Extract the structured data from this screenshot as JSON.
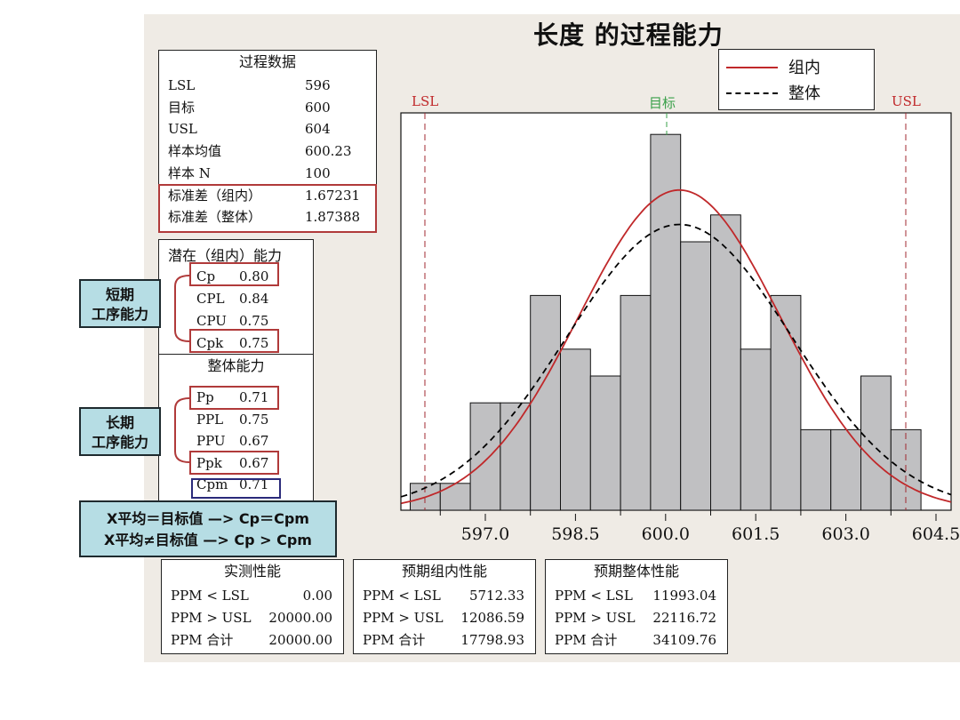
{
  "title": "长度 的过程能力",
  "legend": {
    "within": "组内",
    "overall": "整体",
    "within_color": "#c0282a",
    "overall_color": "#000000"
  },
  "spec_labels": {
    "lsl": "LSL",
    "target": "目标",
    "usl": "USL",
    "lsl_color": "#c0282a",
    "target_color": "#3aa04a",
    "usl_color": "#c0282a"
  },
  "process_data": {
    "title": "过程数据",
    "rows": [
      {
        "label": "LSL",
        "value": "596"
      },
      {
        "label": "目标",
        "value": "600"
      },
      {
        "label": "USL",
        "value": "604"
      },
      {
        "label": "样本均值",
        "value": "600.23"
      },
      {
        "label": "样本 N",
        "value": "100"
      },
      {
        "label": "标准差（组内）",
        "value": "1.67231"
      },
      {
        "label": "标准差（整体）",
        "value": "1.87388"
      }
    ]
  },
  "potential": {
    "title": "潜在（组内）能力",
    "rows": [
      {
        "label": "Cp",
        "value": "0.80"
      },
      {
        "label": "CPL",
        "value": "0.84"
      },
      {
        "label": "CPU",
        "value": "0.75"
      },
      {
        "label": "Cpk",
        "value": "0.75"
      }
    ]
  },
  "overall": {
    "title": "整体能力",
    "rows": [
      {
        "label": "Pp",
        "value": "0.71"
      },
      {
        "label": "PPL",
        "value": "0.75"
      },
      {
        "label": "PPU",
        "value": "0.67"
      },
      {
        "label": "Ppk",
        "value": "0.67"
      },
      {
        "label": "Cpm",
        "value": "0.71"
      }
    ]
  },
  "callouts": {
    "short_term": [
      "短期",
      "工序能力"
    ],
    "long_term": [
      "长期",
      "工序能力"
    ],
    "rule_1": "X平均＝目标值 —> Cp＝Cpm",
    "rule_2": "X平均≠目标值 —> Cp > Cpm"
  },
  "observed": {
    "title": "实测性能",
    "rows": [
      {
        "label": "PPM < LSL",
        "value": "0.00"
      },
      {
        "label": "PPM > USL",
        "value": "20000.00"
      },
      {
        "label": "PPM 合计",
        "value": "20000.00"
      }
    ]
  },
  "exp_within": {
    "title": "预期组内性能",
    "rows": [
      {
        "label": "PPM < LSL",
        "value": "5712.33"
      },
      {
        "label": "PPM > USL",
        "value": "12086.59"
      },
      {
        "label": "PPM 合计",
        "value": "17798.93"
      }
    ]
  },
  "exp_overall": {
    "title": "预期整体性能",
    "rows": [
      {
        "label": "PPM < LSL",
        "value": "11993.04"
      },
      {
        "label": "PPM > USL",
        "value": "22116.72"
      },
      {
        "label": "PPM 合计",
        "value": "34109.76"
      }
    ]
  },
  "x_ticks": [
    "597.0",
    "598.5",
    "600.0",
    "601.5",
    "603.0",
    "604.5"
  ],
  "chart_data": {
    "type": "bar",
    "title": "长度 的过程能力",
    "xlabel": "",
    "ylabel": "",
    "bin_width": 0.5,
    "bin_starts": [
      595.75,
      596.25,
      596.75,
      597.25,
      597.75,
      598.25,
      598.75,
      599.25,
      599.75,
      600.25,
      600.75,
      601.25,
      601.75,
      602.25,
      602.75,
      603.25,
      603.75
    ],
    "values": [
      1,
      1,
      4,
      4,
      8,
      6,
      5,
      8,
      14,
      10,
      11,
      6,
      8,
      3,
      3,
      5,
      3
    ],
    "x_ticks": [
      597.0,
      598.5,
      600.0,
      601.5,
      603.0,
      604.5
    ],
    "xlim": [
      595.5,
      605.0
    ],
    "reference_lines": {
      "LSL": 596,
      "Target": 600,
      "USL": 604
    },
    "overlays": [
      {
        "name": "组内",
        "type": "normal_curve",
        "mean": 600.23,
        "stdev": 1.67231,
        "style": "solid",
        "color": "#c0282a"
      },
      {
        "name": "整体",
        "type": "normal_curve",
        "mean": 600.23,
        "stdev": 1.87388,
        "style": "dashed",
        "color": "#000000"
      }
    ],
    "legend_position": "top-right",
    "grid": false
  }
}
